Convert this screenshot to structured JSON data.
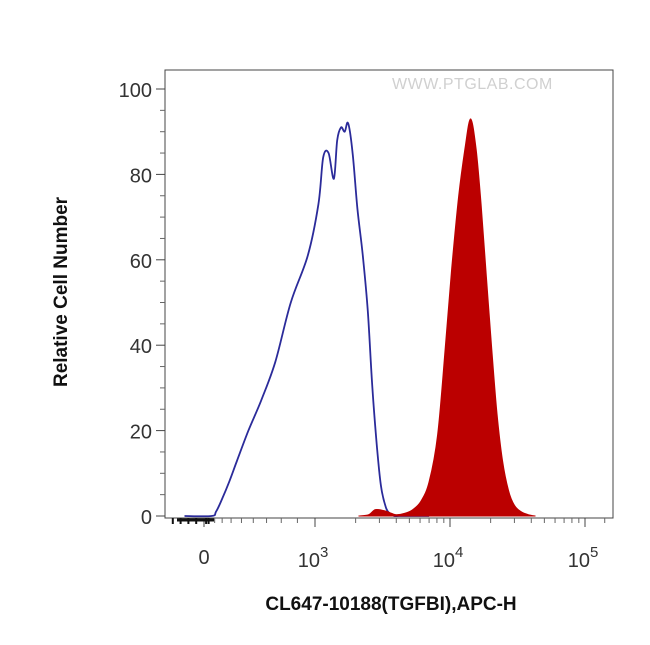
{
  "chart_data": {
    "type": "area",
    "xlabel": "CL647-10188(TGFBI),APC-H",
    "ylabel": "Relative Cell Number",
    "watermark": "WWW.PTGLAB.COM",
    "x_scale": "logicle",
    "ylim": [
      0,
      100
    ],
    "y_ticks": [
      0,
      20,
      40,
      60,
      80,
      100
    ],
    "x_ticks": [
      {
        "value": 0,
        "label": "0"
      },
      {
        "value": 1000,
        "base": "10",
        "exp": "3"
      },
      {
        "value": 10000,
        "base": "10",
        "exp": "4"
      },
      {
        "value": 100000,
        "base": "10",
        "exp": "5"
      }
    ],
    "grid": false,
    "series": [
      {
        "style": "outline",
        "color": "#2b2b9a",
        "x": [
          -500,
          150,
          220,
          300,
          380,
          460,
          560,
          660,
          760,
          860,
          960,
          1060,
          1150,
          1260,
          1380,
          1460,
          1560,
          1660,
          1760,
          1900,
          2060,
          2260,
          2460,
          2660,
          2880,
          3080,
          3350,
          3600,
          3860,
          4200,
          5000,
          7000
        ],
        "y": [
          0,
          0,
          1,
          4,
          8,
          13,
          20,
          27,
          36,
          50,
          61,
          73,
          84,
          85,
          79,
          88,
          91,
          90,
          92,
          85,
          72,
          61,
          48,
          30,
          16,
          7,
          2,
          0.5,
          0,
          0,
          0,
          0
        ]
      },
      {
        "style": "filled",
        "color": "#bb0000",
        "x": [
          2100,
          2500,
          2800,
          3300,
          3700,
          4000,
          4600,
          5300,
          6100,
          7000,
          8100,
          9200,
          10300,
          11600,
          12900,
          14200,
          15600,
          17000,
          18600,
          20400,
          22300,
          24500,
          27100,
          30000,
          33600,
          38000,
          43000
        ],
        "y": [
          0,
          0.3,
          1.5,
          1.2,
          0.6,
          0.3,
          0.6,
          1.5,
          3.5,
          8,
          19,
          39,
          58,
          75,
          86,
          93,
          86,
          73,
          56,
          39,
          24,
          13,
          6,
          2.5,
          1,
          0.3,
          0
        ]
      }
    ]
  }
}
